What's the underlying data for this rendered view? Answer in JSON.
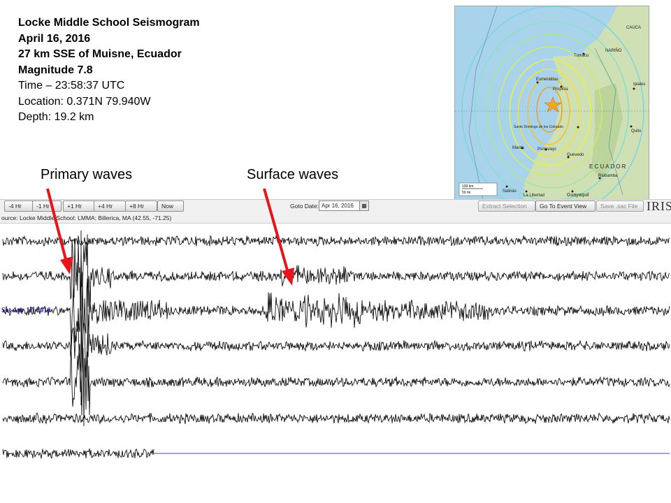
{
  "info": {
    "title": "Locke Middle School Seismogram",
    "date": "April 16, 2016",
    "location_desc": "27 km SSE of Muisne, Ecuador",
    "magnitude": "Magnitude 7.8",
    "time": "Time – 23:58:37 UTC",
    "location": "Location:   0.371N  79.940W",
    "depth": "Depth: 19.2 km"
  },
  "annotations": {
    "primary": "Primary waves",
    "surface": "Surface waves",
    "arrow_color": "#e8141a"
  },
  "map": {
    "labels": {
      "tumaco": "Tumaco",
      "narino": "NARIÑO",
      "esmeraldas": "Esmeraldas",
      "propicia": "Propicia",
      "ipiales": "Ipiales",
      "santo_domingo": "Santo Domingo de los Colorado",
      "quito": "Quito",
      "manta": "Manta",
      "portoviejo": "Portoviejo",
      "quevedo": "Quevedo",
      "ecuador": "E C U A D O R",
      "riobamba": "Riobamba",
      "salinas": "Salinas",
      "libertad": "La Libertad",
      "guayaquil": "Guayaquil",
      "cauca": "CAUCA",
      "scale_km": "100 km",
      "scale_mi": "50 mi"
    },
    "colors": {
      "sea": "#a9d3ea",
      "land": "#cfe0b4",
      "star": "#f6a623"
    }
  },
  "toolbar": {
    "buttons": [
      "-4 Hr",
      "-1 Hr",
      "+1 Hr",
      "+4 Hr",
      "+8 Hr",
      "Now"
    ],
    "goto_label": "Goto Date:",
    "goto_value": "Apr 16, 2016",
    "extract": "Extract Selection",
    "goto_event": "Go To Event View",
    "save_sac": "Save .sac File",
    "logo": "IRIS"
  },
  "source": "ource: Locke Middle School: LMMA: Billerica, MA (42.55, -71.25)",
  "seismogram": {
    "datetag": "Sat Apr 17, 2016",
    "trace_color": "#111111",
    "baseline_color": "#4a4a9a",
    "trace_count": 7
  }
}
